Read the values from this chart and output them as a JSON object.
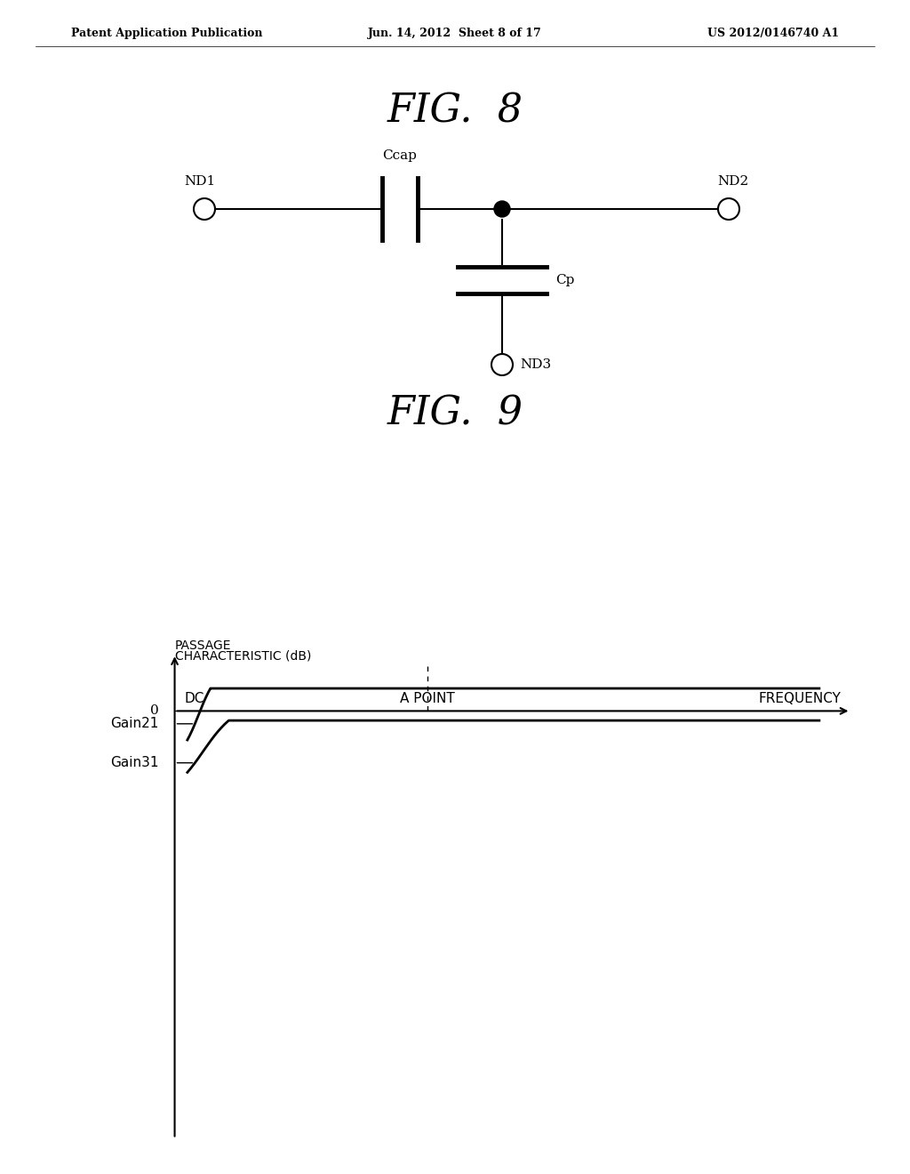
{
  "background_color": "#ffffff",
  "header_left": "Patent Application Publication",
  "header_center": "Jun. 14, 2012  Sheet 8 of 17",
  "header_right": "US 2012/0146740 A1",
  "fig8_title": "FIG.  8",
  "fig9_title": "FIG.  9",
  "fig8": {
    "nd1_label": "ND1",
    "nd2_label": "ND2",
    "nd3_label": "ND3",
    "ccap_label": "Ccap",
    "cp_label": "Cp"
  },
  "fig9": {
    "ylabel_line1": "PASSAGE",
    "ylabel_line2": "CHARACTERISTIC (dB)",
    "xlabel": "FREQUENCY",
    "dc_label": "DC",
    "zero_label": "0",
    "a_point_label": "A POINT",
    "gain21_label": "Gain21",
    "gain31_label": "Gain31"
  }
}
